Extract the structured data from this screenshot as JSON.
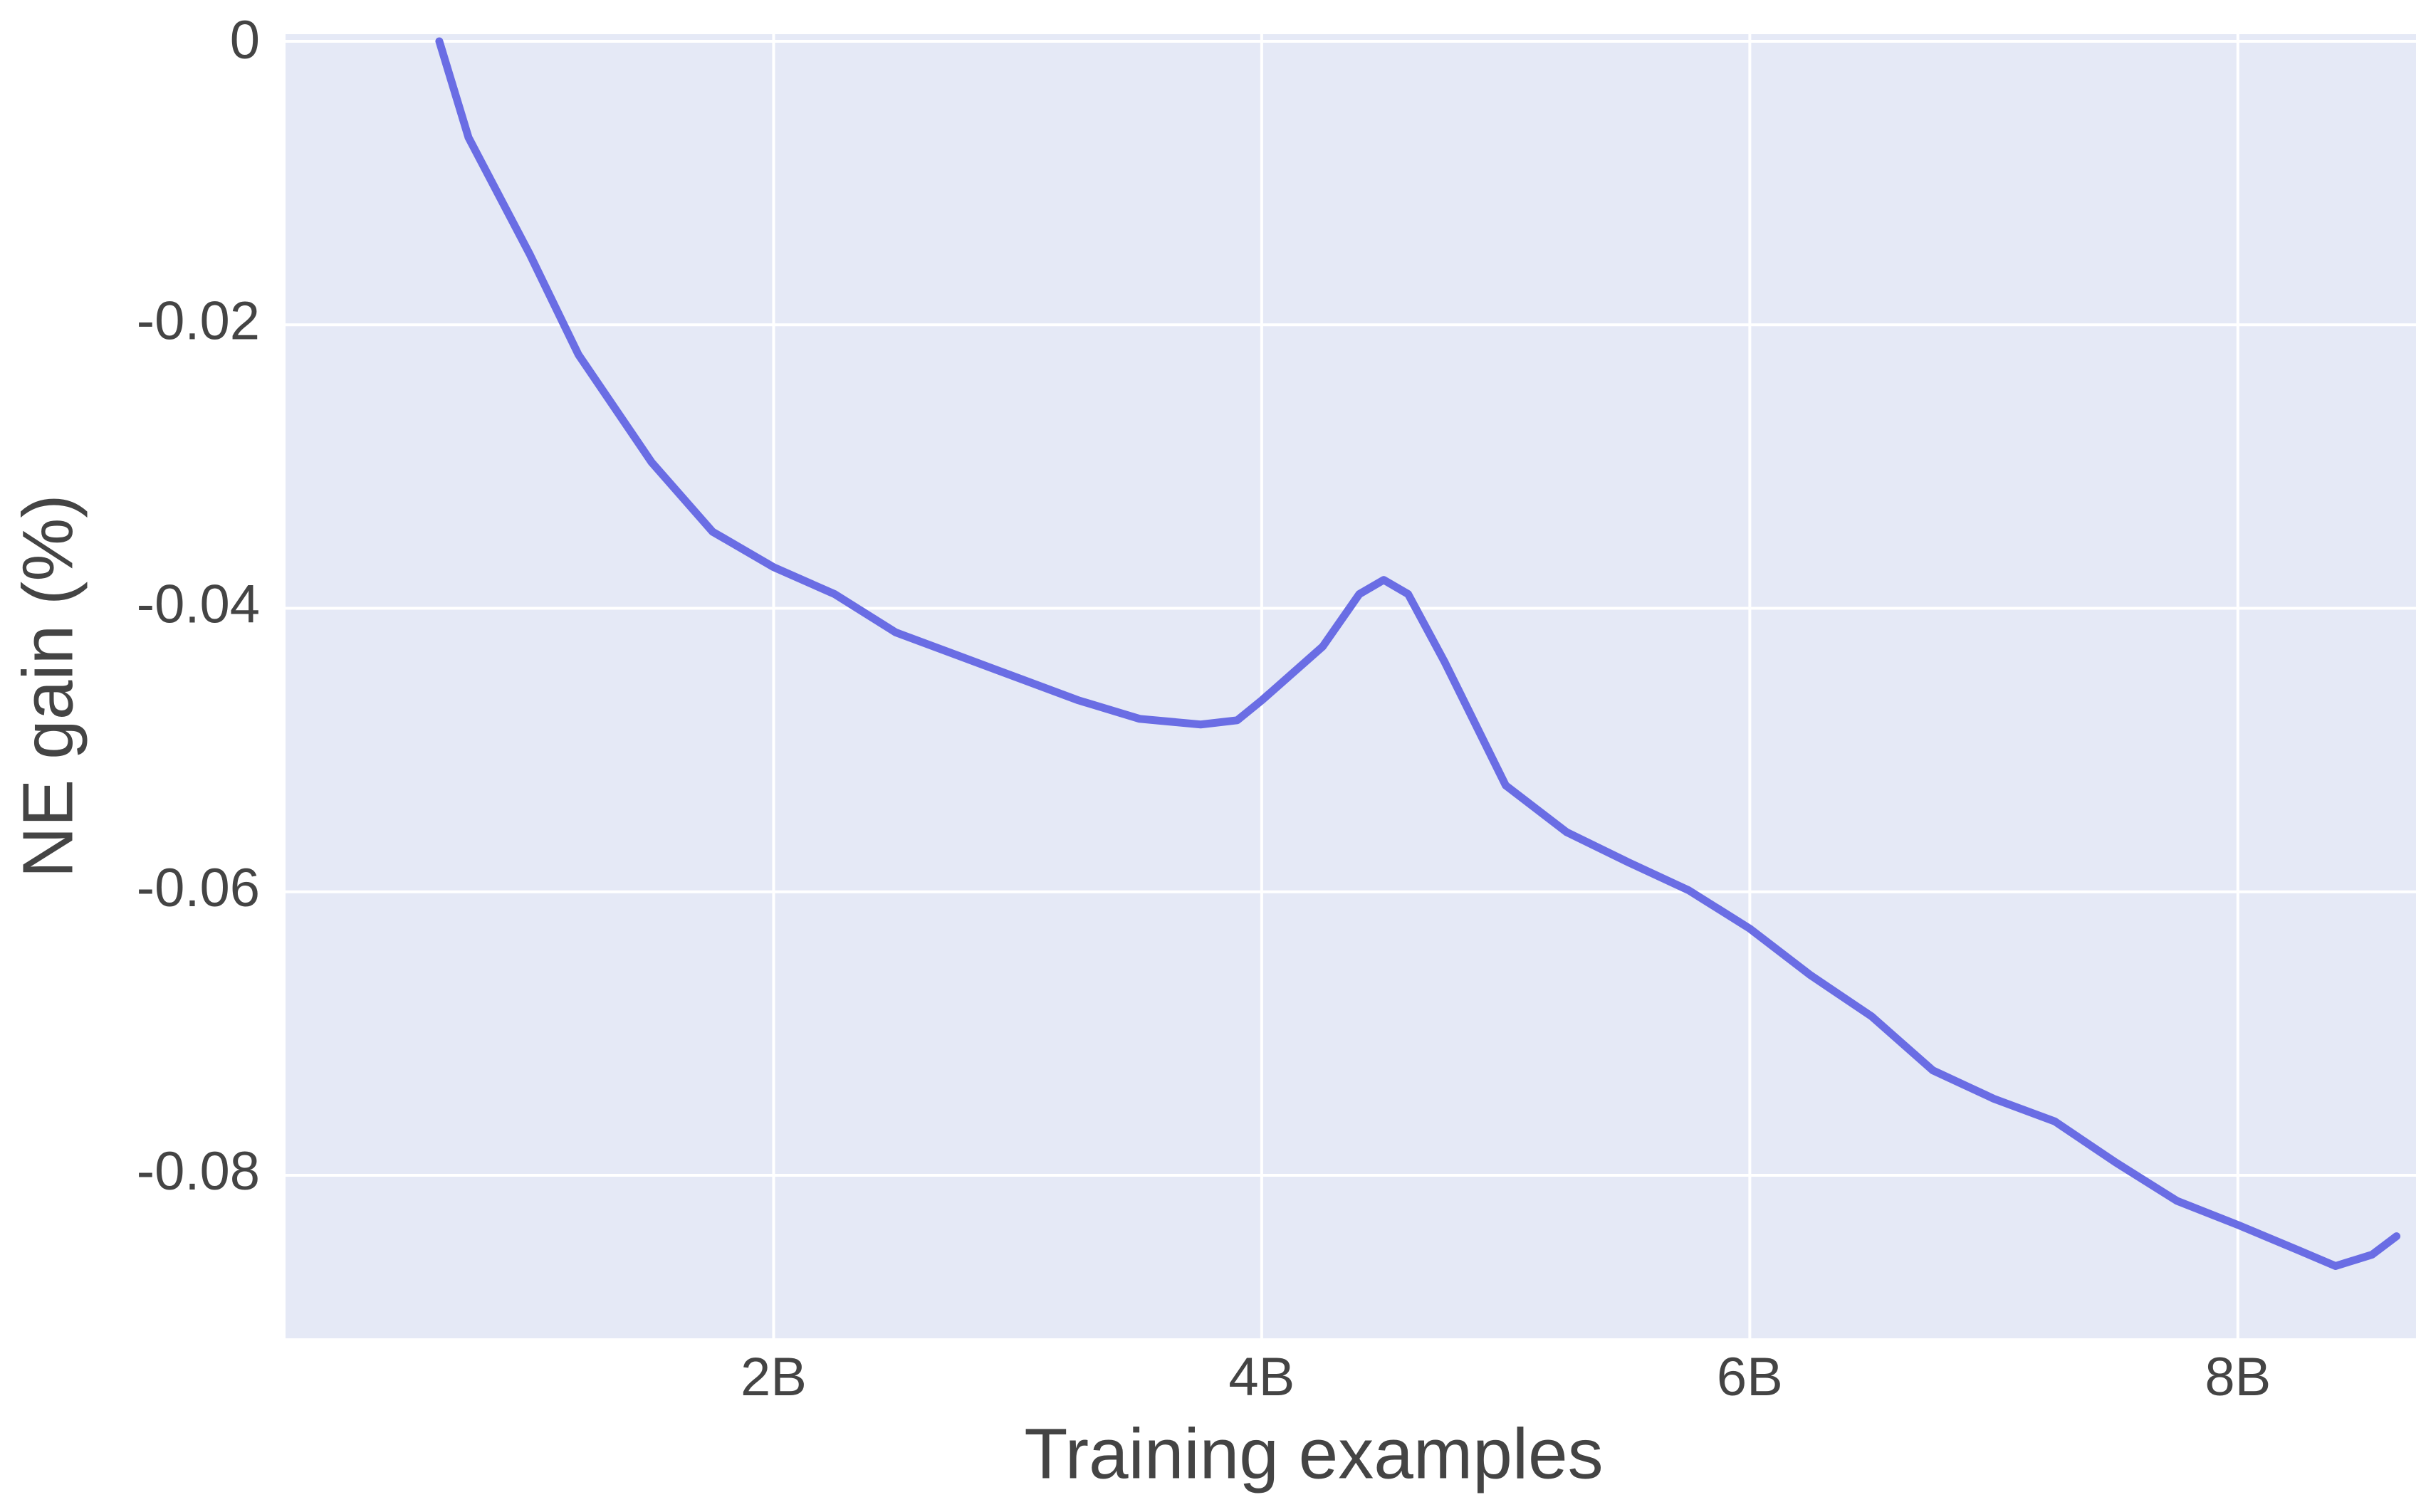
{
  "chart_data": {
    "type": "line",
    "x_label": "Training examples",
    "y_label": "NE gain (%)",
    "xlim": [
      0,
      8.73
    ],
    "ylim": [
      -0.0915,
      0.0005
    ],
    "xticks": [
      {
        "value": 2,
        "label": "2B"
      },
      {
        "value": 4,
        "label": "4B"
      },
      {
        "value": 6,
        "label": "6B"
      },
      {
        "value": 8,
        "label": "8B"
      }
    ],
    "yticks": [
      0,
      -0.02,
      -0.04,
      -0.06,
      -0.08
    ],
    "grid": true,
    "background": "#e5e9f6",
    "x": [
      0.63,
      0.75,
      1.0,
      1.2,
      1.5,
      1.75,
      2.0,
      2.25,
      2.5,
      2.75,
      3.0,
      3.25,
      3.5,
      3.75,
      3.9,
      4.0,
      4.25,
      4.4,
      4.5,
      4.6,
      4.75,
      5.0,
      5.25,
      5.5,
      5.75,
      6.0,
      6.25,
      6.5,
      6.75,
      7.0,
      7.25,
      7.5,
      7.75,
      8.0,
      8.25,
      8.4,
      8.55,
      8.65
    ],
    "series": [
      {
        "color": "#6a6de4",
        "values": [
          0,
          -0.0068,
          -0.015,
          -0.0221,
          -0.0297,
          -0.0346,
          -0.0371,
          -0.039,
          -0.0417,
          -0.0433,
          -0.0449,
          -0.0465,
          -0.0478,
          -0.0482,
          -0.0479,
          -0.0465,
          -0.0427,
          -0.039,
          -0.038,
          -0.039,
          -0.0438,
          -0.0525,
          -0.0558,
          -0.0579,
          -0.0599,
          -0.0626,
          -0.0659,
          -0.0688,
          -0.0726,
          -0.0746,
          -0.0762,
          -0.0791,
          -0.0818,
          -0.0835,
          -0.0853,
          -0.0864,
          -0.0856,
          -0.0843
        ]
      }
    ]
  }
}
